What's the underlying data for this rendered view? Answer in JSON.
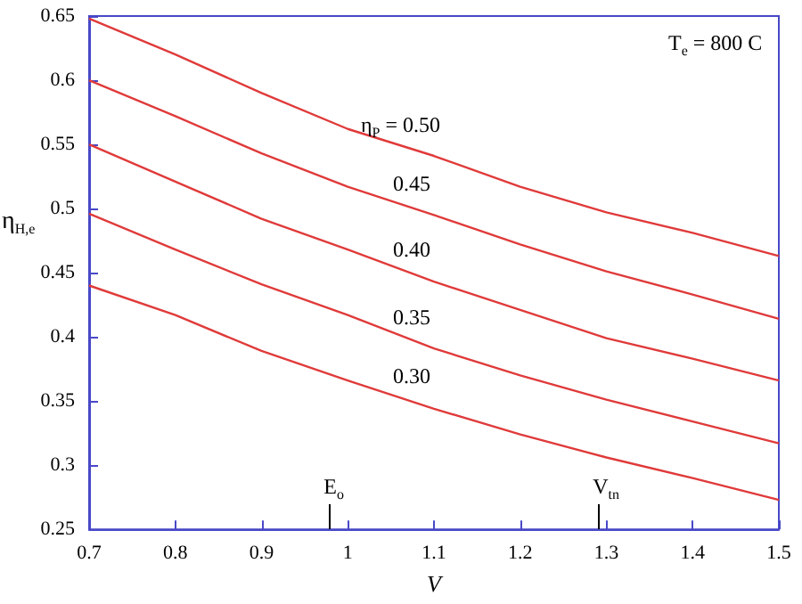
{
  "chart_data": {
    "type": "line",
    "xlabel": "V",
    "ylabel": "η$_{H,e}$",
    "x": [
      0.7,
      0.8,
      0.9,
      1.0,
      1.1,
      1.2,
      1.3,
      1.4,
      1.5
    ],
    "series": [
      {
        "name": "η$_{P}$ = 0.50",
        "color": "#e03a3a",
        "values": [
          0.648,
          0.62,
          0.59,
          0.562,
          0.541,
          0.517,
          0.497,
          0.481,
          0.463
        ]
      },
      {
        "name": "0.45",
        "color": "#e03a3a",
        "values": [
          0.6,
          0.572,
          0.543,
          0.517,
          0.495,
          0.472,
          0.451,
          0.433,
          0.414
        ]
      },
      {
        "name": "0.40",
        "color": "#e03a3a",
        "values": [
          0.55,
          0.521,
          0.492,
          0.468,
          0.443,
          0.421,
          0.399,
          0.383,
          0.366
        ]
      },
      {
        "name": "0.35",
        "color": "#e03a3a",
        "values": [
          0.496,
          0.468,
          0.441,
          0.417,
          0.391,
          0.37,
          0.351,
          0.334,
          0.317
        ]
      },
      {
        "name": "0.30",
        "color": "#e03a3a",
        "values": [
          0.44,
          0.417,
          0.389,
          0.366,
          0.344,
          0.324,
          0.306,
          0.29,
          0.273
        ]
      }
    ],
    "annotations": [
      "T$_{e}$ = 800 C",
      "E$_{o}$",
      "V$_{tn}$"
    ],
    "xlim": [
      0.7,
      1.5
    ],
    "xticks": [
      0.7,
      0.8,
      0.9,
      1,
      1.1,
      1.2,
      1.3,
      1.4,
      1.5
    ],
    "ylim": [
      0.25,
      0.65
    ],
    "yticks": [
      0.25,
      0.3,
      0.35,
      0.4,
      0.45,
      0.5,
      0.55,
      0.6,
      0.65
    ],
    "grid": false,
    "legend": false,
    "marker": "none",
    "line_style": "solid"
  }
}
